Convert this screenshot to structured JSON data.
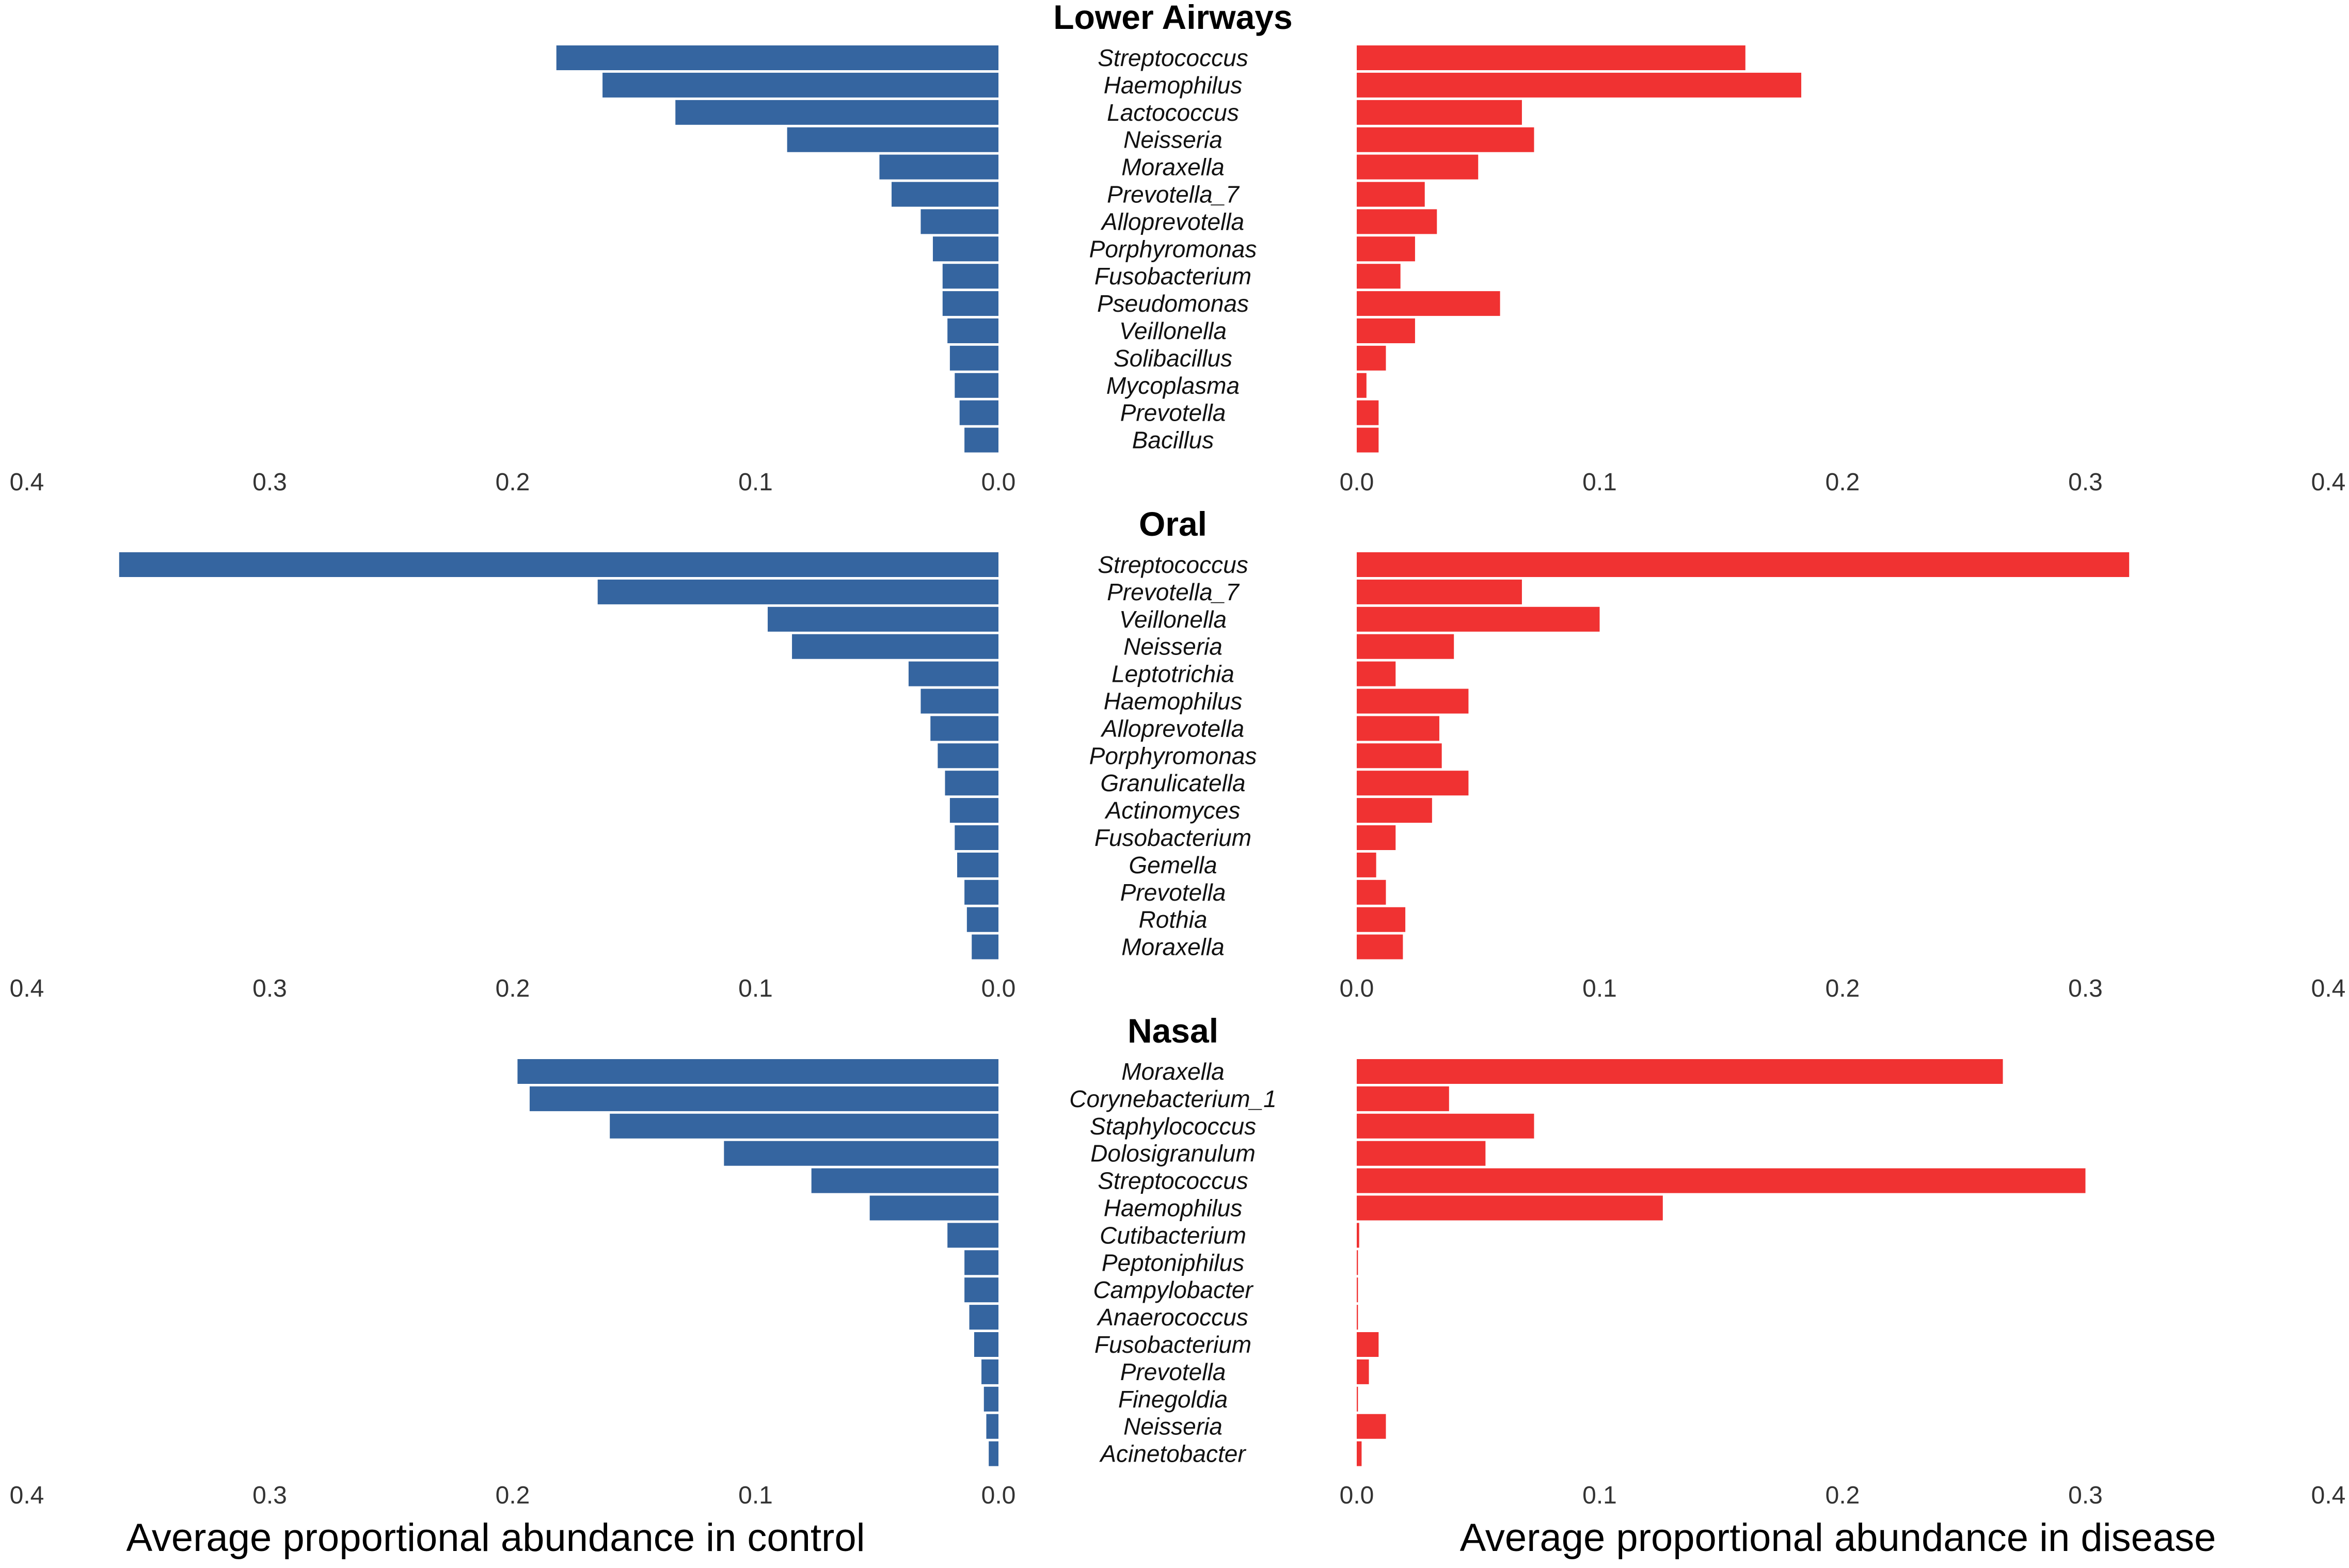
{
  "chart_data": {
    "type": "bar",
    "orientation": "horizontal-mirrored",
    "xlim": [
      0,
      0.4
    ],
    "ticks": [
      "0.4",
      "0.3",
      "0.2",
      "0.1",
      "0.0"
    ],
    "tick_values": [
      0.4,
      0.3,
      0.2,
      0.1,
      0.0
    ],
    "right_ticks": [
      "0.0",
      "0.1",
      "0.2",
      "0.3",
      "0.4"
    ],
    "right_tick_values": [
      0.0,
      0.1,
      0.2,
      0.3,
      0.4
    ],
    "xlabel_left": "Average proportional abundance in control",
    "xlabel_right": "Average proportional abundance in disease",
    "colors": {
      "control": "#3565a0",
      "disease": "#f03232"
    },
    "panels": [
      {
        "title": "Lower Airways",
        "categories": [
          "Streptococcus",
          "Haemophilus",
          "Lactococcus",
          "Neisseria",
          "Moraxella",
          "Prevotella_7",
          "Alloprevotella",
          "Porphyromonas",
          "Fusobacterium",
          "Pseudomonas",
          "Veillonella",
          "Solibacillus",
          "Mycoplasma",
          "Prevotella",
          "Bacillus"
        ],
        "control": [
          0.182,
          0.163,
          0.133,
          0.087,
          0.049,
          0.044,
          0.032,
          0.027,
          0.023,
          0.023,
          0.021,
          0.02,
          0.018,
          0.016,
          0.014
        ],
        "disease": [
          0.16,
          0.183,
          0.068,
          0.073,
          0.05,
          0.028,
          0.033,
          0.024,
          0.018,
          0.059,
          0.024,
          0.012,
          0.004,
          0.009,
          0.009
        ]
      },
      {
        "title": "Oral",
        "categories": [
          "Streptococcus",
          "Prevotella_7",
          "Veillonella",
          "Neisseria",
          "Leptotrichia",
          "Haemophilus",
          "Alloprevotella",
          "Porphyromonas",
          "Granulicatella",
          "Actinomyces",
          "Fusobacterium",
          "Gemella",
          "Prevotella",
          "Rothia",
          "Moraxella"
        ],
        "control": [
          0.362,
          0.165,
          0.095,
          0.085,
          0.037,
          0.032,
          0.028,
          0.025,
          0.022,
          0.02,
          0.018,
          0.017,
          0.014,
          0.013,
          0.011
        ],
        "disease": [
          0.318,
          0.068,
          0.1,
          0.04,
          0.016,
          0.046,
          0.034,
          0.035,
          0.046,
          0.031,
          0.016,
          0.008,
          0.012,
          0.02,
          0.019
        ]
      },
      {
        "title": "Nasal",
        "categories": [
          "Moraxella",
          "Corynebacterium_1",
          "Staphylococcus",
          "Dolosigranulum",
          "Streptococcus",
          "Haemophilus",
          "Cutibacterium",
          "Peptoniphilus",
          "Campylobacter",
          "Anaerococcus",
          "Fusobacterium",
          "Prevotella",
          "Finegoldia",
          "Neisseria",
          "Acinetobacter"
        ],
        "control": [
          0.198,
          0.193,
          0.16,
          0.113,
          0.077,
          0.053,
          0.021,
          0.014,
          0.014,
          0.012,
          0.01,
          0.007,
          0.006,
          0.005,
          0.004
        ],
        "disease": [
          0.266,
          0.038,
          0.073,
          0.053,
          0.3,
          0.126,
          0.001,
          0.0005,
          0.0005,
          0.0005,
          0.009,
          0.005,
          0.0005,
          0.012,
          0.002
        ]
      }
    ]
  }
}
